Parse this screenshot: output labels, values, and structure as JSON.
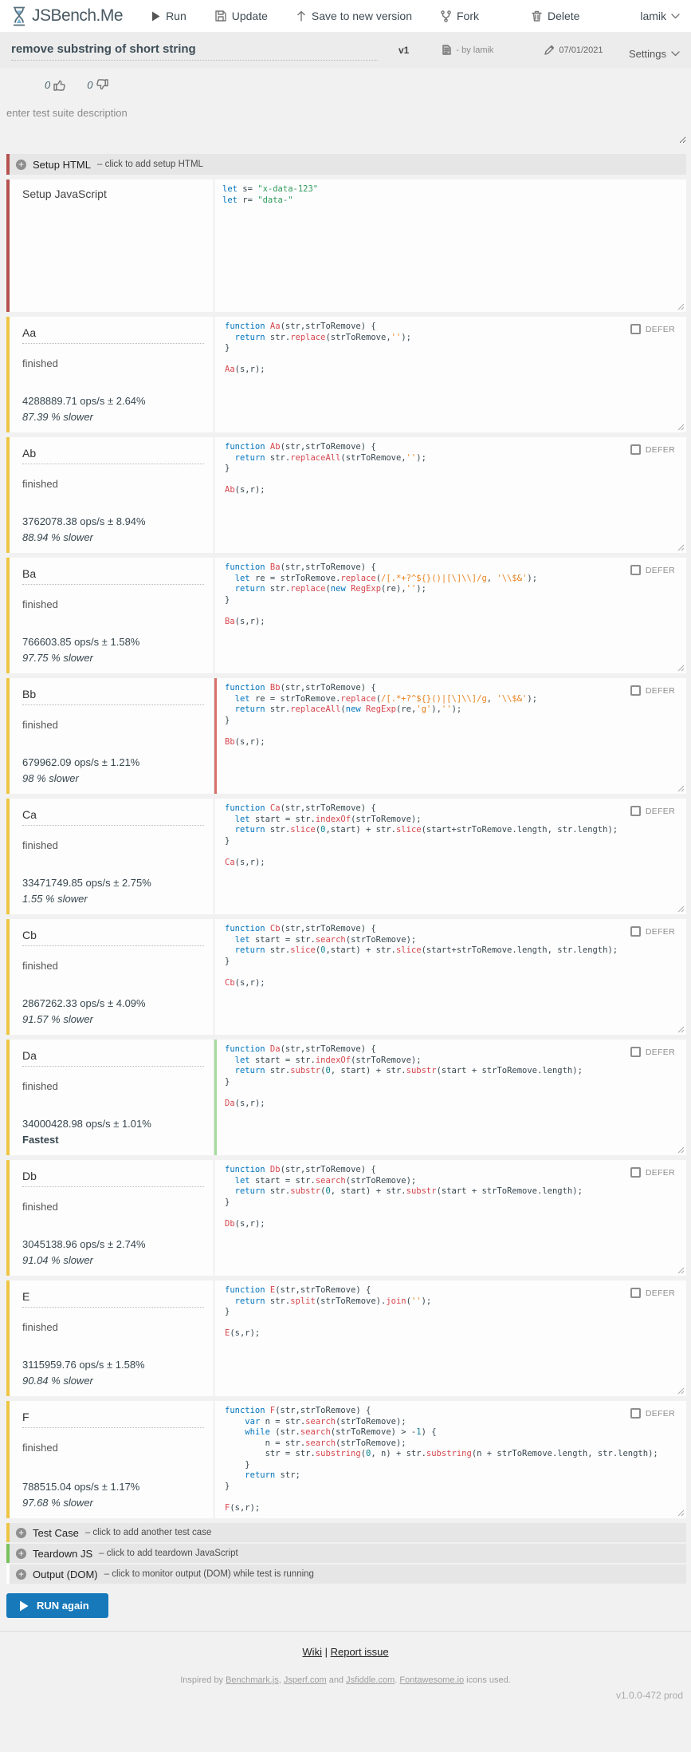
{
  "nav": {
    "brand": "JSBench.Me",
    "run": "Run",
    "update": "Update",
    "save": "Save to new version",
    "fork": "Fork",
    "delete": "Delete",
    "user": "lamik"
  },
  "header": {
    "title": "remove substring of short string",
    "version": "v1",
    "byline": "- by lamik",
    "date": "07/01/2021",
    "settings": "Settings",
    "likes": "0",
    "dislikes": "0"
  },
  "description_placeholder": "enter test suite description",
  "setup_html": {
    "title": "Setup HTML",
    "hint": "– click to add setup HTML"
  },
  "setup_js": {
    "label": "Setup JavaScript",
    "code": "let s= \"x-data-123\"\nlet r= \"data-\""
  },
  "defer_label": "DEFER",
  "testcases": [
    {
      "name": "Aa",
      "status": "finished",
      "ops": "4288889.71 ops/s ± 2.64%",
      "slower": "87.39 % slower",
      "edge": "",
      "code": "function Aa(str,strToRemove) {\n  return str.replace(strToRemove,'');\n}\n\nAa(s,r);"
    },
    {
      "name": "Ab",
      "status": "finished",
      "ops": "3762078.38 ops/s ± 8.94%",
      "slower": "88.94 % slower",
      "edge": "",
      "code": "function Ab(str,strToRemove) {\n  return str.replaceAll(strToRemove,'');\n}\n\nAb(s,r);"
    },
    {
      "name": "Ba",
      "status": "finished",
      "ops": "766603.85 ops/s ± 1.58%",
      "slower": "97.75 % slower",
      "edge": "",
      "code": "function Ba(str,strToRemove) {\n  let re = strToRemove.replace(/[.*+?^${}()|[\\]\\\\]/g, '\\\\$&');\n  return str.replace(new RegExp(re),'');\n}\n\nBa(s,r);"
    },
    {
      "name": "Bb",
      "status": "finished",
      "ops": "679962.09 ops/s ± 1.21%",
      "slower": "98 % slower",
      "edge": "slowest",
      "code": "function Bb(str,strToRemove) {\n  let re = strToRemove.replace(/[.*+?^${}()|[\\]\\\\]/g, '\\\\$&');\n  return str.replaceAll(new RegExp(re,'g'),'');\n}\n\nBb(s,r);"
    },
    {
      "name": "Ca",
      "status": "finished",
      "ops": "33471749.85 ops/s ± 2.75%",
      "slower": "1.55 % slower",
      "edge": "",
      "code": "function Ca(str,strToRemove) {\n  let start = str.indexOf(strToRemove);\n  return str.slice(0,start) + str.slice(start+strToRemove.length, str.length);\n}\n\nCa(s,r);"
    },
    {
      "name": "Cb",
      "status": "finished",
      "ops": "2867262.33 ops/s ± 4.09%",
      "slower": "91.57 % slower",
      "edge": "",
      "code": "function Cb(str,strToRemove) {\n  let start = str.search(strToRemove);\n  return str.slice(0,start) + str.slice(start+strToRemove.length, str.length);\n}\n\nCb(s,r);"
    },
    {
      "name": "Da",
      "status": "finished",
      "ops": "34000428.98 ops/s ± 1.01%",
      "slower": "Fastest",
      "edge": "fastest",
      "code": "function Da(str,strToRemove) {\n  let start = str.indexOf(strToRemove);\n  return str.substr(0, start) + str.substr(start + strToRemove.length);\n}\n\nDa(s,r);"
    },
    {
      "name": "Db",
      "status": "finished",
      "ops": "3045138.96 ops/s ± 2.74%",
      "slower": "91.04 % slower",
      "edge": "",
      "code": "function Db(str,strToRemove) {\n  let start = str.search(strToRemove);\n  return str.substr(0, start) + str.substr(start + strToRemove.length);\n}\n\nDb(s,r);"
    },
    {
      "name": "E",
      "status": "finished",
      "ops": "3115959.76 ops/s ± 1.58%",
      "slower": "90.84 % slower",
      "edge": "",
      "code": "function E(str,strToRemove) {\n  return str.split(strToRemove).join('');\n}\n\nE(s,r);"
    },
    {
      "name": "F",
      "status": "finished",
      "ops": "788515.04 ops/s ± 1.17%",
      "slower": "97.68 % slower",
      "edge": "",
      "code": "function F(str,strToRemove) {\n    var n = str.search(strToRemove);\n    while (str.search(strToRemove) > -1) {\n        n = str.search(strToRemove);\n        str = str.substring(0, n) + str.substring(n + strToRemove.length, str.length);\n    }\n    return str;\n}\n\nF(s,r);"
    }
  ],
  "footer_bars": [
    {
      "title": "Test Case",
      "hint": "– click to add another test case",
      "accent": "#eec543"
    },
    {
      "title": "Teardown JS",
      "hint": "– click to add teardown JavaScript",
      "accent": "#77c25b"
    },
    {
      "title": "Output (DOM)",
      "hint": "– click to monitor output (DOM) while test is running",
      "accent": "#fdfdfd"
    }
  ],
  "run_button": "RUN again",
  "links": {
    "wiki": "Wiki",
    "separator": "|",
    "report": "Report issue"
  },
  "credits": {
    "prefix": "Inspired by ",
    "link1": "Benchmark.js",
    "sep1": ", ",
    "link2": "Jsperf.com",
    "sep2": " and ",
    "link3": "Jsfiddle.com",
    "sep3": ". ",
    "link4": "Fontawesome.io",
    "suffix": " icons used."
  },
  "version_tag": "v1.0.0-472 prod",
  "colors": {
    "maroon": "#b5524f",
    "case_yellow": "#eec543",
    "fastest": "#a5dd9e",
    "slowest": "#d9716d",
    "button_blue": "#1779ba",
    "teardown_green": "#77c25b"
  }
}
